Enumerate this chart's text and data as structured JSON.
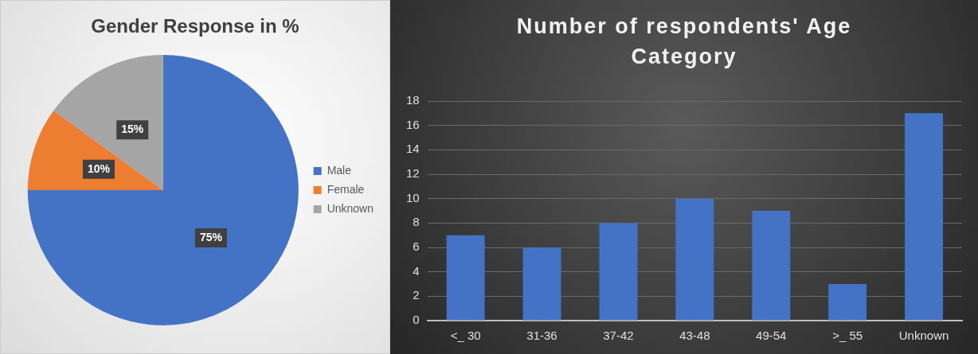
{
  "chart_data": [
    {
      "type": "pie",
      "title": "Gender Response in %",
      "categories": [
        "Male",
        "Female",
        "Unknown"
      ],
      "values": [
        75,
        10,
        15
      ],
      "colors": [
        "#4472c4",
        "#ed7d31",
        "#a5a5a5"
      ],
      "value_labels": [
        "75%",
        "10%",
        "15%"
      ],
      "legend": "right"
    },
    {
      "type": "bar",
      "title": "Number of respondents' Age Category",
      "categories": [
        "<_ 30",
        "31-36",
        "37-42",
        "43-48",
        "49-54",
        ">_ 55",
        "Unknown"
      ],
      "values": [
        7,
        6,
        8,
        10,
        9,
        3,
        17
      ],
      "color": "#4472c4",
      "ylim": [
        0,
        18
      ],
      "yticks": [
        0,
        2,
        4,
        6,
        8,
        10,
        12,
        14,
        16,
        18
      ],
      "grid": "y"
    }
  ]
}
